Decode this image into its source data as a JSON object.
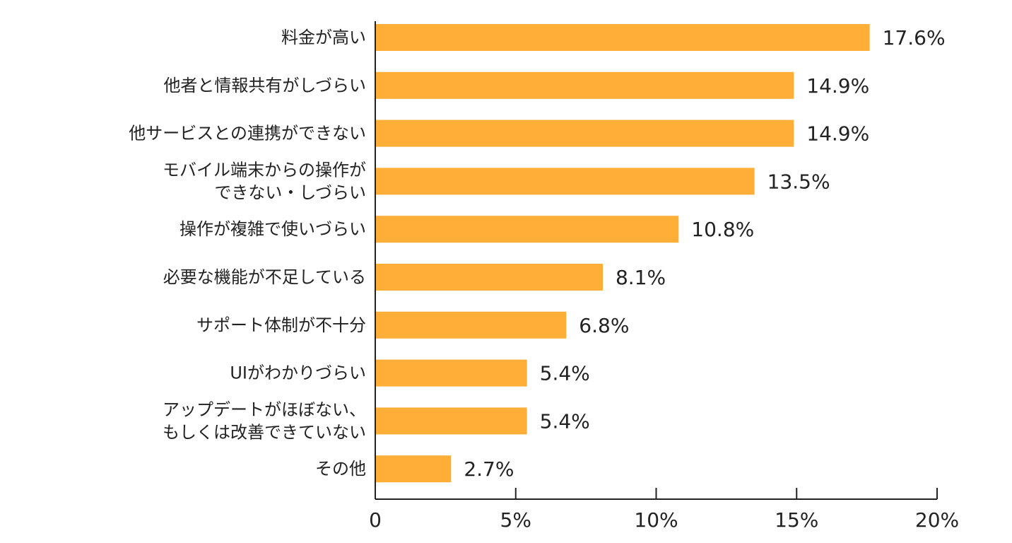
{
  "chart_data": {
    "type": "bar",
    "orientation": "horizontal",
    "title": "",
    "xlabel": "",
    "ylabel": "",
    "xlim": [
      0,
      20
    ],
    "grid": false,
    "bar_color": "#FFAF38",
    "axis_color": "#222222",
    "categories": [
      [
        "料金が高い"
      ],
      [
        "他者と情報共有がしづらい"
      ],
      [
        "他サービスとの連携ができない"
      ],
      [
        "モバイル端末からの操作が",
        "できない・しづらい"
      ],
      [
        "操作が複雑で使いづらい"
      ],
      [
        "必要な機能が不足している"
      ],
      [
        "サポート体制が不十分"
      ],
      [
        "UIがわかりづらい"
      ],
      [
        "アップデートがほぼない、",
        "もしくは改善できていない"
      ],
      [
        "その他"
      ]
    ],
    "values": [
      17.6,
      14.9,
      14.9,
      13.5,
      10.8,
      8.1,
      6.8,
      5.4,
      5.4,
      2.7
    ],
    "value_labels": [
      "17.6%",
      "14.9%",
      "14.9%",
      "13.5%",
      "10.8%",
      "8.1%",
      "6.8%",
      "5.4%",
      "5.4%",
      "2.7%"
    ],
    "ticks": [
      0,
      5,
      10,
      15,
      20
    ],
    "tick_labels": [
      "0",
      "5%",
      "10%",
      "15%",
      "20%"
    ]
  }
}
